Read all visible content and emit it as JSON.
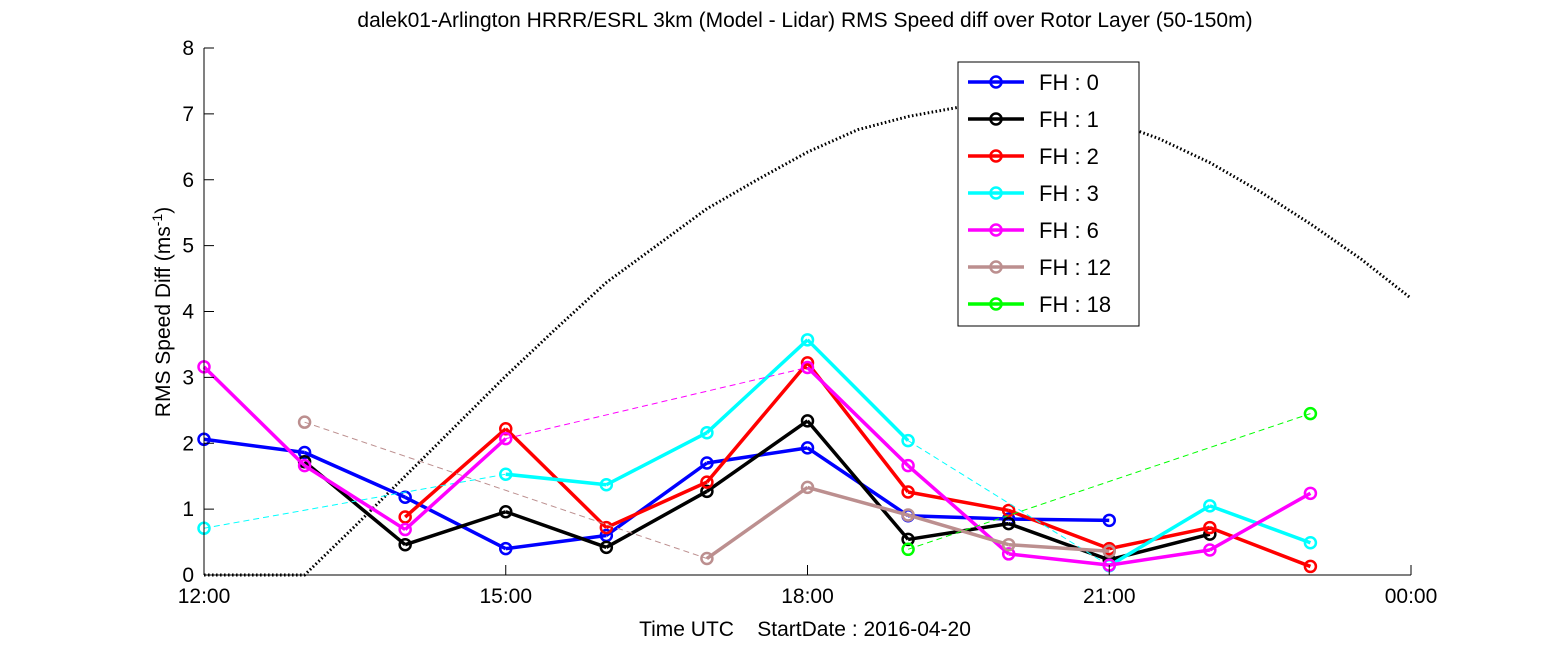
{
  "chart_data": {
    "type": "line",
    "title": "dalek01-Arlington HRRR/ESRL 3km (Model - Lidar) RMS Speed diff over Rotor Layer (50-150m)",
    "xlabel": "Time UTC    StartDate : 2016-04-20",
    "ylabel_main": "RMS Speed Diff (ms",
    "ylabel_sup": "-1",
    "ylabel_tail": ")",
    "xlim": [
      12,
      24
    ],
    "ylim": [
      0,
      8
    ],
    "x_ticks": [
      12,
      15,
      18,
      21,
      24
    ],
    "x_tick_labels": [
      "12:00",
      "15:00",
      "18:00",
      "21:00",
      "00:00"
    ],
    "y_ticks": [
      0,
      1,
      2,
      3,
      4,
      5,
      6,
      7,
      8
    ],
    "y_tick_labels": [
      "0",
      "1",
      "2",
      "3",
      "4",
      "5",
      "6",
      "7",
      "8"
    ],
    "grid": false,
    "legend_position": "top-right",
    "series": [
      {
        "name": "FH : 0",
        "color": "#0000ff",
        "x": [
          12,
          13,
          14,
          15,
          16,
          17,
          18,
          19,
          20,
          21
        ],
        "y": [
          2.06,
          1.86,
          1.18,
          0.4,
          0.6,
          1.7,
          1.93,
          0.9,
          0.85,
          0.83
        ]
      },
      {
        "name": "FH : 1",
        "color": "#000000",
        "x": [
          13,
          14,
          15,
          16,
          17,
          18,
          19,
          20,
          21,
          22
        ],
        "y": [
          1.72,
          0.46,
          0.96,
          0.42,
          1.27,
          2.34,
          0.54,
          0.78,
          0.23,
          0.62
        ]
      },
      {
        "name": "FH : 2",
        "color": "#ff0000",
        "x": [
          14,
          15,
          16,
          17,
          18,
          19,
          20,
          21,
          22,
          23
        ],
        "y": [
          0.88,
          2.22,
          0.72,
          1.41,
          3.22,
          1.26,
          0.98,
          0.4,
          0.72,
          0.13
        ]
      },
      {
        "name": "FH : 3",
        "color": "#00ffff",
        "x": [
          12,
          15,
          16,
          17,
          18,
          19,
          21,
          22,
          23
        ],
        "y": [
          0.71,
          1.53,
          1.37,
          2.16,
          3.57,
          2.04,
          0.14,
          1.05,
          0.49
        ]
      },
      {
        "name": "FH : 6",
        "color": "#ff00ff",
        "x": [
          12,
          13,
          14,
          15,
          18,
          19,
          20,
          21,
          22,
          23
        ],
        "y": [
          3.16,
          1.66,
          0.69,
          2.07,
          3.15,
          1.66,
          0.32,
          0.15,
          0.38,
          1.24
        ]
      },
      {
        "name": "FH : 12",
        "color": "#bc8f8f",
        "x": [
          13,
          17,
          18,
          19,
          20,
          21
        ],
        "y": [
          2.32,
          0.25,
          1.33,
          0.91,
          0.46,
          0.36
        ]
      },
      {
        "name": "FH : 18",
        "color": "#00ff00",
        "x": [
          19,
          23
        ],
        "y": [
          0.39,
          2.45
        ]
      }
    ],
    "reference_curve": {
      "style": "dotted",
      "color": "#000000",
      "x": [
        12,
        13,
        13.5,
        14,
        14.5,
        15,
        15.5,
        16,
        16.5,
        17,
        17.5,
        18,
        18.5,
        19,
        19.5,
        20,
        20.5,
        21,
        21.5,
        22,
        22.5,
        23,
        23.5,
        24
      ],
      "y": [
        0,
        0,
        0.74,
        1.5,
        2.26,
        3.02,
        3.74,
        4.44,
        5.0,
        5.56,
        6.0,
        6.42,
        6.76,
        6.96,
        7.1,
        7.14,
        7.08,
        6.9,
        6.62,
        6.26,
        5.82,
        5.33,
        4.8,
        4.2
      ]
    }
  }
}
